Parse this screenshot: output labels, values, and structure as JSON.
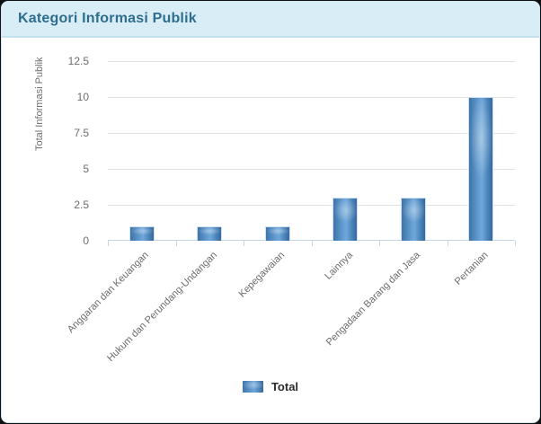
{
  "header": {
    "title": "Kategori Informasi Publik"
  },
  "chart_data": {
    "type": "bar",
    "title": "Kategori Informasi Publik",
    "categories": [
      "Anggaran dan Keuangan",
      "Hukum dan Perundang-Undangan",
      "Kepegawaian",
      "Lainnya",
      "Pengadaan Barang dan Jasa",
      "Pertanian"
    ],
    "series": [
      {
        "name": "Total",
        "values": [
          1,
          1,
          1,
          3,
          3,
          10
        ]
      }
    ],
    "xlabel": "",
    "ylabel": "Total Informasi Publik",
    "ylim": [
      0,
      12.5
    ],
    "yticks": [
      0,
      2.5,
      5,
      7.5,
      10,
      12.5
    ],
    "grid": true,
    "legend_position": "bottom"
  },
  "colors": {
    "header_bg": "#d9edf7",
    "header_border": "#c3e2f0",
    "title_text": "#2d6d8e",
    "bar_dark": "#35689e",
    "bar_light": "#6fa7d9",
    "gridline": "#e1e1e1",
    "axis_line": "#c2d8ea",
    "tick_text": "#6e6e6e",
    "legend_text": "#2b2b2b",
    "card_border": "#cfe6f2"
  }
}
